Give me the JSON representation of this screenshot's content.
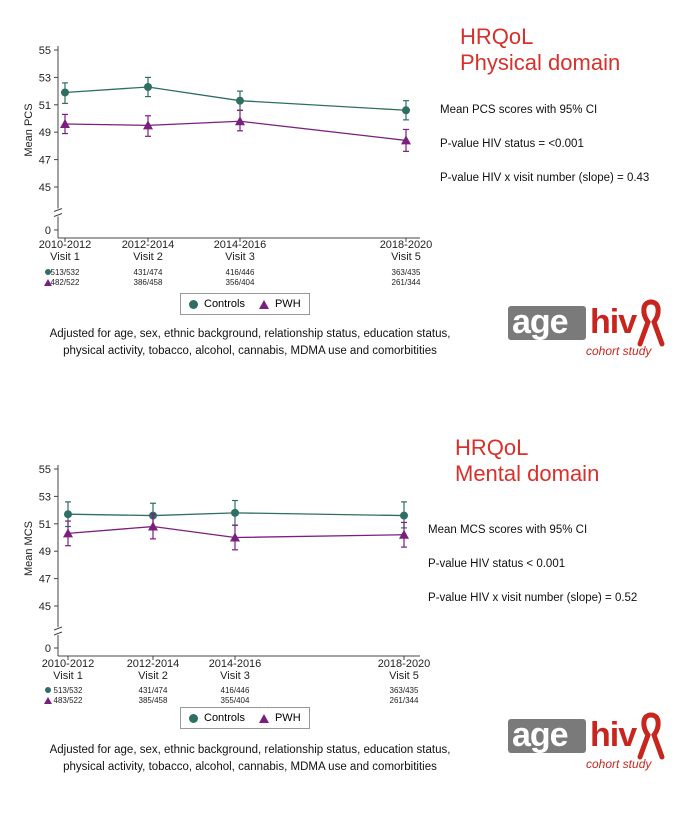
{
  "colors": {
    "controls": "#2f6e62",
    "pwh": "#7b1f7f",
    "title": "#d8302a"
  },
  "panels": [
    {
      "title_line1": "HRQoL",
      "title_line2": "Physical domain",
      "note1": "Mean PCS scores with 95% CI",
      "note2": "P-value HIV status = <0.001",
      "note3": "P-value HIV x visit number (slope) = 0.43",
      "legend": {
        "controls": "Controls",
        "pwh": "PWH"
      },
      "adjusted_line1": "Adjusted for age, sex, ethnic background, relationship status, education status,",
      "adjusted_line2": "physical activity, tobacco, alcohol, cannabis, MDMA use and comorbitities",
      "logo": {
        "age": "age",
        "hiv": "hiv",
        "subtitle": "cohort study"
      },
      "counts": {
        "controls": [
          "513/532",
          "431/474",
          "416/446",
          "363/435"
        ],
        "pwh": [
          "482/522",
          "386/458",
          "356/404",
          "261/344"
        ]
      },
      "chart_data": {
        "type": "line",
        "ylabel": "Mean PCS",
        "yticks": [
          0,
          45,
          47,
          49,
          51,
          53,
          55
        ],
        "ylim": [
          45,
          55
        ],
        "axis_break": true,
        "x": [
          1,
          2,
          3,
          5
        ],
        "categories": [
          [
            "2010-2012",
            "Visit 1"
          ],
          [
            "2012-2014",
            "Visit 2"
          ],
          [
            "2014-2016",
            "Visit 3"
          ],
          [
            "2018-2020",
            "Visit 5"
          ]
        ],
        "series": [
          {
            "name": "Controls",
            "marker": "circle",
            "values": [
              51.9,
              52.3,
              51.3,
              50.6
            ],
            "ci_low": [
              51.1,
              51.6,
              50.6,
              49.9
            ],
            "ci_high": [
              52.6,
              53.0,
              52.0,
              51.3
            ]
          },
          {
            "name": "PWH",
            "marker": "triangle",
            "values": [
              49.6,
              49.5,
              49.8,
              48.4
            ],
            "ci_low": [
              48.9,
              48.7,
              49.1,
              47.6
            ],
            "ci_high": [
              50.3,
              50.2,
              50.6,
              49.2
            ]
          }
        ]
      }
    },
    {
      "title_line1": "HRQoL",
      "title_line2": "Mental domain",
      "note1": "Mean MCS scores with 95% CI",
      "note2": "P-value HIV status < 0.001",
      "note3": "P-value HIV x visit number (slope) = 0.52",
      "legend": {
        "controls": "Controls",
        "pwh": "PWH"
      },
      "adjusted_line1": "Adjusted for age, sex, ethnic background, relationship status, education status,",
      "adjusted_line2": "physical activity, tobacco, alcohol, cannabis, MDMA use and comorbitities",
      "logo": {
        "age": "age",
        "hiv": "hiv",
        "subtitle": "cohort study"
      },
      "counts": {
        "controls": [
          "513/532",
          "431/474",
          "416/446",
          "363/435"
        ],
        "pwh": [
          "483/522",
          "385/458",
          "355/404",
          "261/344"
        ]
      },
      "chart_data": {
        "type": "line",
        "ylabel": "Mean MCS",
        "yticks": [
          0,
          45,
          47,
          49,
          51,
          53,
          55
        ],
        "ylim": [
          45,
          55
        ],
        "axis_break": true,
        "x": [
          1,
          2,
          3,
          5
        ],
        "categories": [
          [
            "2010-2012",
            "Visit 1"
          ],
          [
            "2012-2014",
            "Visit 2"
          ],
          [
            "2014-2016",
            "Visit 3"
          ],
          [
            "2018-2020",
            "Visit 5"
          ]
        ],
        "series": [
          {
            "name": "Controls",
            "marker": "circle",
            "values": [
              51.7,
              51.6,
              51.8,
              51.6
            ],
            "ci_low": [
              50.8,
              50.7,
              50.9,
              50.7
            ],
            "ci_high": [
              52.6,
              52.5,
              52.7,
              52.6
            ]
          },
          {
            "name": "PWH",
            "marker": "triangle",
            "values": [
              50.3,
              50.8,
              50.0,
              50.2
            ],
            "ci_low": [
              49.4,
              49.9,
              49.1,
              49.3
            ],
            "ci_high": [
              51.2,
              51.7,
              50.9,
              51.1
            ]
          }
        ]
      }
    }
  ]
}
